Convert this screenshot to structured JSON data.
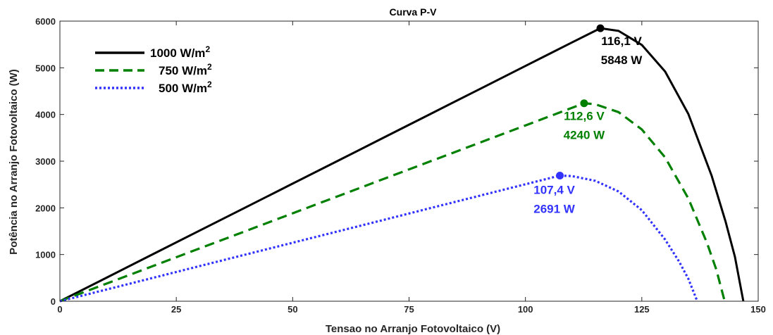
{
  "chart_data": {
    "type": "line",
    "title": "Curva P-V",
    "xlabel": "Tensao no Arranjo Fotovoltaico (V)",
    "ylabel": "Potência no Arranjo Fotovoltaico (W)",
    "xlim": [
      0,
      150
    ],
    "ylim": [
      0,
      6000
    ],
    "xticks": [
      0,
      25,
      50,
      75,
      100,
      125,
      150
    ],
    "yticks": [
      0,
      1000,
      2000,
      3000,
      4000,
      5000,
      6000
    ],
    "grid": false,
    "legend_position": "top-left",
    "series": [
      {
        "name": "1000 W/m",
        "name_sup": "2",
        "color": "#000000",
        "style": "solid",
        "voc": 146.8,
        "points": [
          [
            0,
            0
          ],
          [
            10,
            504
          ],
          [
            20,
            1008
          ],
          [
            30,
            1512
          ],
          [
            40,
            2015
          ],
          [
            50,
            2519
          ],
          [
            60,
            3023
          ],
          [
            70,
            3527
          ],
          [
            80,
            4031
          ],
          [
            90,
            4535
          ],
          [
            100,
            5039
          ],
          [
            105,
            5291
          ],
          [
            110,
            5543
          ],
          [
            116.1,
            5848
          ],
          [
            120,
            5790
          ],
          [
            125,
            5490
          ],
          [
            130,
            4920
          ],
          [
            135,
            4010
          ],
          [
            140,
            2690
          ],
          [
            143,
            1700
          ],
          [
            145,
            950
          ],
          [
            146.8,
            0
          ]
        ],
        "mpp": {
          "x": 116.1,
          "y": 5848,
          "label_v": "116,1 V",
          "label_p": "5848 W"
        }
      },
      {
        "name": "750 W/m",
        "name_sup": "2",
        "color": "#008000",
        "style": "dashed",
        "voc": 142.8,
        "points": [
          [
            0,
            0
          ],
          [
            10,
            377
          ],
          [
            20,
            754
          ],
          [
            30,
            1130
          ],
          [
            40,
            1506
          ],
          [
            50,
            1883
          ],
          [
            60,
            2260
          ],
          [
            70,
            2636
          ],
          [
            80,
            3012
          ],
          [
            90,
            3389
          ],
          [
            100,
            3766
          ],
          [
            105,
            3954
          ],
          [
            112.6,
            4240
          ],
          [
            115,
            4220
          ],
          [
            120,
            4050
          ],
          [
            125,
            3680
          ],
          [
            130,
            3080
          ],
          [
            135,
            2200
          ],
          [
            139,
            1250
          ],
          [
            141,
            680
          ],
          [
            142.8,
            0
          ]
        ],
        "mpp": {
          "x": 112.6,
          "y": 4240,
          "label_v": "112,6 V",
          "label_p": "4240 W"
        }
      },
      {
        "name": "500 W/m",
        "name_sup": "2",
        "color": "#3333ff",
        "style": "dotted",
        "voc": 136.9,
        "points": [
          [
            0,
            0
          ],
          [
            10,
            250
          ],
          [
            20,
            501
          ],
          [
            30,
            752
          ],
          [
            40,
            1002
          ],
          [
            50,
            1253
          ],
          [
            60,
            1503
          ],
          [
            70,
            1754
          ],
          [
            80,
            2005
          ],
          [
            90,
            2255
          ],
          [
            100,
            2506
          ],
          [
            107.4,
            2691
          ],
          [
            110,
            2680
          ],
          [
            115,
            2580
          ],
          [
            120,
            2350
          ],
          [
            125,
            1950
          ],
          [
            130,
            1320
          ],
          [
            133,
            850
          ],
          [
            135,
            480
          ],
          [
            136.9,
            0
          ]
        ],
        "mpp": {
          "x": 107.4,
          "y": 2691,
          "label_v": "107,4 V",
          "label_p": "2691 W"
        }
      }
    ]
  }
}
